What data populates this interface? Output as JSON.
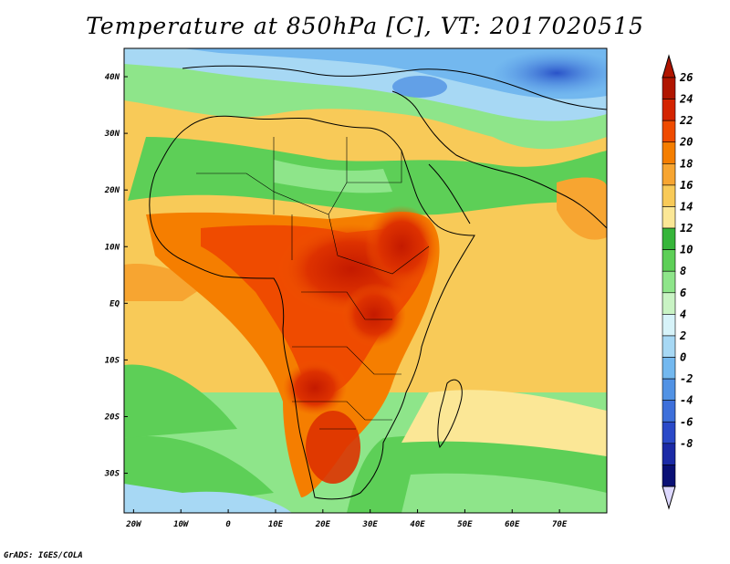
{
  "title": "Temperature at 850hPa [C], VT: 2017020515",
  "credit": "GrADS: IGES/COLA",
  "map": {
    "x_ticks": [
      {
        "lon": -20,
        "label": "20W"
      },
      {
        "lon": -10,
        "label": "10W"
      },
      {
        "lon": 0,
        "label": "0"
      },
      {
        "lon": 10,
        "label": "10E"
      },
      {
        "lon": 20,
        "label": "20E"
      },
      {
        "lon": 30,
        "label": "30E"
      },
      {
        "lon": 40,
        "label": "40E"
      },
      {
        "lon": 50,
        "label": "50E"
      },
      {
        "lon": 60,
        "label": "60E"
      },
      {
        "lon": 70,
        "label": "70E"
      }
    ],
    "y_ticks": [
      {
        "lat": 40,
        "label": "40N"
      },
      {
        "lat": 30,
        "label": "30N"
      },
      {
        "lat": 20,
        "label": "20N"
      },
      {
        "lat": 10,
        "label": "10N"
      },
      {
        "lat": 0,
        "label": "EQ"
      },
      {
        "lat": -10,
        "label": "10S"
      },
      {
        "lat": -20,
        "label": "20S"
      },
      {
        "lat": -30,
        "label": "30S"
      }
    ],
    "lon_range": [
      -22,
      80
    ],
    "lat_range": [
      -37,
      45
    ]
  },
  "colorbar": {
    "labels": [
      "26",
      "24",
      "22",
      "20",
      "18",
      "16",
      "14",
      "12",
      "10",
      "8",
      "6",
      "4",
      "2",
      "0",
      "-2",
      "-4",
      "-6",
      "-8"
    ],
    "colors": [
      "#b01500",
      "#d42400",
      "#ef4b00",
      "#f57e00",
      "#f7a531",
      "#f8ca58",
      "#fbe796",
      "#36b53a",
      "#5dcf57",
      "#8ee58a",
      "#c9f3c4",
      "#d7f3f9",
      "#a7d8f4",
      "#73b8ef",
      "#5192e4",
      "#3d6fda",
      "#2a49c8",
      "#1b2aa6",
      "#0a1075"
    ],
    "over_color": "#b01500",
    "under_color": "#ddd8ff"
  }
}
